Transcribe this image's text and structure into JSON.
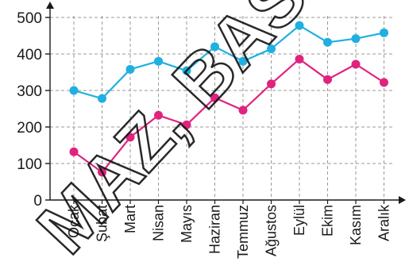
{
  "chart_data": {
    "type": "line",
    "categories": [
      "Ocak",
      "Şubat",
      "Mart",
      "Nisan",
      "Mayıs",
      "Haziran",
      "Temmuz",
      "Ağustos",
      "Eylül",
      "Ekim",
      "Kasım",
      "Aralık"
    ],
    "series": [
      {
        "color": "#1fb0e0",
        "values": [
          300,
          278,
          358,
          380,
          354,
          420,
          380,
          414,
          478,
          432,
          442,
          458
        ]
      },
      {
        "color": "#e0237e",
        "values": [
          132,
          76,
          172,
          232,
          206,
          280,
          246,
          318,
          386,
          330,
          372,
          322
        ]
      }
    ],
    "yticks": [
      "0",
      "100",
      "200",
      "300",
      "400",
      "500"
    ],
    "ylim": [
      0,
      500
    ],
    "grid": true,
    "title": "",
    "xlabel": "",
    "ylabel": ""
  },
  "watermark": {
    "text": "MAZ,  BAS"
  }
}
